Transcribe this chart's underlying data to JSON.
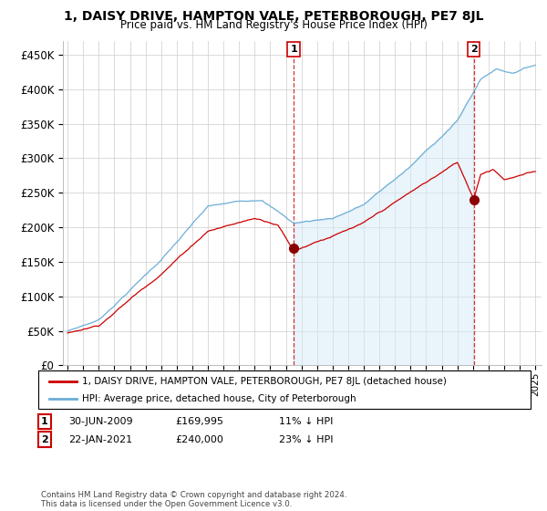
{
  "title": "1, DAISY DRIVE, HAMPTON VALE, PETERBOROUGH, PE7 8JL",
  "subtitle": "Price paid vs. HM Land Registry's House Price Index (HPI)",
  "ylabel_ticks": [
    "£0",
    "£50K",
    "£100K",
    "£150K",
    "£200K",
    "£250K",
    "£300K",
    "£350K",
    "£400K",
    "£450K"
  ],
  "ytick_values": [
    0,
    50000,
    100000,
    150000,
    200000,
    250000,
    300000,
    350000,
    400000,
    450000
  ],
  "ylim": [
    0,
    470000
  ],
  "year_start": 1995,
  "year_end": 2025,
  "sale1_year": 2009.5,
  "sale1_price": 169995,
  "sale1_label": "1",
  "sale2_year": 2021.05,
  "sale2_price": 240000,
  "sale2_label": "2",
  "hpi_color": "#6baed6",
  "hpi_fill_color": "#d6eaf8",
  "price_color": "#cc0000",
  "marker_color": "#8B0000",
  "background_color": "#ffffff",
  "grid_color": "#cccccc",
  "vline_color": "#cc0000",
  "legend_label_red": "1, DAISY DRIVE, HAMPTON VALE, PETERBOROUGH, PE7 8JL (detached house)",
  "legend_label_blue": "HPI: Average price, detached house, City of Peterborough",
  "annotation1_date": "30-JUN-2009",
  "annotation1_price": "£169,995",
  "annotation1_hpi": "11% ↓ HPI",
  "annotation2_date": "22-JAN-2021",
  "annotation2_price": "£240,000",
  "annotation2_hpi": "23% ↓ HPI",
  "footer": "Contains HM Land Registry data © Crown copyright and database right 2024.\nThis data is licensed under the Open Government Licence v3.0."
}
